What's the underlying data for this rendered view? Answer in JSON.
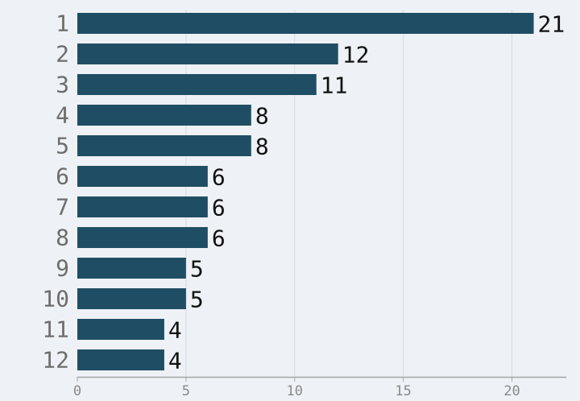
{
  "chart_data": {
    "type": "bar",
    "orientation": "horizontal",
    "categories": [
      "1",
      "2",
      "3",
      "4",
      "5",
      "6",
      "7",
      "8",
      "9",
      "10",
      "11",
      "12"
    ],
    "values": [
      21,
      12,
      11,
      8,
      8,
      6,
      6,
      6,
      5,
      5,
      4,
      4
    ],
    "xlim": [
      0,
      22.5
    ],
    "xticks": [
      0,
      5,
      10,
      15,
      20
    ],
    "grid": true,
    "title": "",
    "xlabel": "",
    "ylabel": "",
    "colors": {
      "bar": "#1f4e64",
      "background": "#eef1f5",
      "grid": "#d8dce1",
      "axis": "#a6a6a6",
      "category_text": "#6d6d6d",
      "value_text": "#111111",
      "tick_text": "#8a8a8a"
    }
  }
}
